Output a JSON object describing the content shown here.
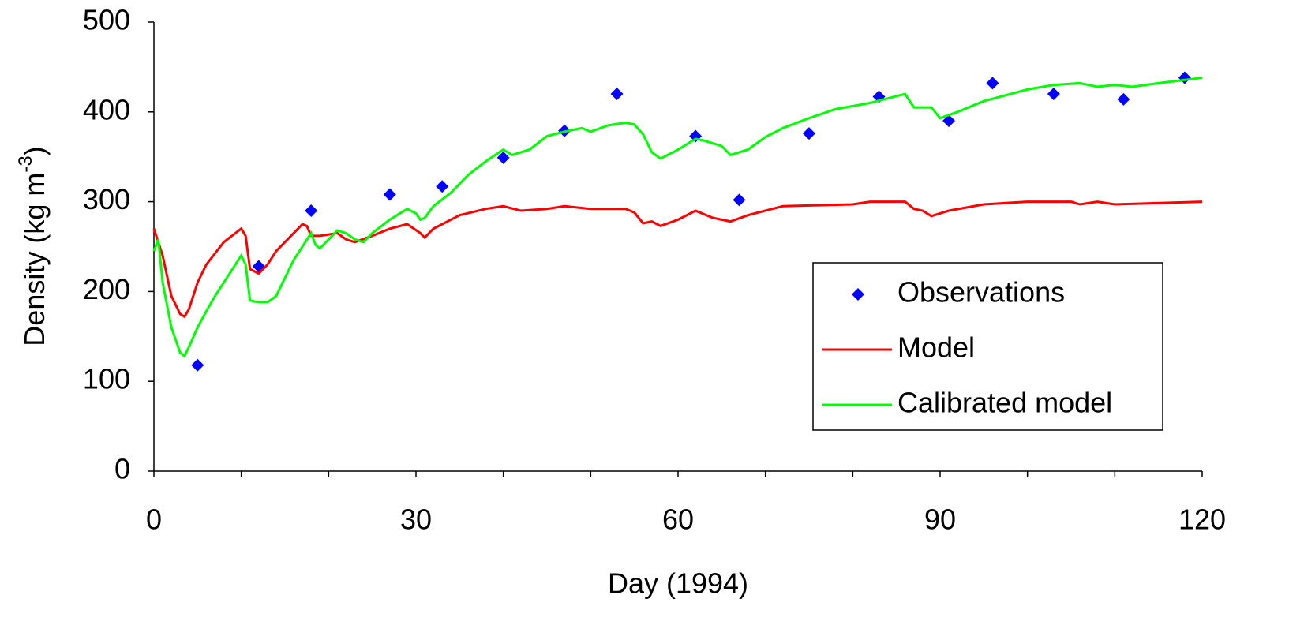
{
  "chart_data": {
    "type": "line",
    "xlabel": "Day (1994)",
    "ylabel": {
      "text": "Density (kg m",
      "superscript": "-3",
      "end": ")"
    },
    "xlim": [
      0,
      120
    ],
    "ylim": [
      0,
      500
    ],
    "xticks": [
      0,
      30,
      60,
      90,
      120
    ],
    "xminor_ticks": [
      10,
      20,
      40,
      50,
      70,
      80,
      100,
      110
    ],
    "yticks": [
      0,
      100,
      200,
      300,
      400,
      500
    ],
    "legend": "lower right",
    "series": [
      {
        "name": "Observations",
        "type": "scatter",
        "color": "#0000ff",
        "x": [
          5,
          12,
          18,
          27,
          33,
          40,
          47,
          53,
          62,
          67,
          75,
          83,
          91,
          96,
          103,
          111,
          118
        ],
        "values": [
          118,
          228,
          290,
          308,
          317,
          349,
          379,
          420,
          373,
          302,
          376,
          417,
          390,
          432,
          420,
          414,
          438
        ]
      },
      {
        "name": "Model",
        "type": "line",
        "color": "#ff0000",
        "x": [
          0,
          1,
          2,
          3,
          3.5,
          4,
          5,
          6,
          8,
          10,
          10.5,
          11,
          12,
          13,
          14,
          15,
          17,
          17.5,
          18,
          19,
          21,
          22,
          23,
          25,
          27,
          29,
          30.5,
          31,
          32,
          35,
          38,
          40,
          42,
          45,
          47,
          50,
          54,
          55,
          56,
          57,
          58,
          60,
          62,
          64,
          66,
          68,
          70,
          72,
          80,
          82,
          86,
          87,
          88,
          89,
          91,
          95,
          100,
          105,
          106,
          108,
          110,
          120
        ],
        "values": [
          270,
          240,
          195,
          175,
          172,
          180,
          210,
          230,
          255,
          270,
          262,
          225,
          220,
          230,
          245,
          255,
          275,
          273,
          262,
          262,
          265,
          258,
          255,
          262,
          270,
          275,
          265,
          260,
          270,
          285,
          292,
          295,
          290,
          292,
          295,
          292,
          292,
          288,
          276,
          278,
          273,
          280,
          290,
          282,
          278,
          285,
          290,
          295,
          297,
          300,
          300,
          292,
          290,
          284,
          290,
          297,
          300,
          300,
          297,
          300,
          297,
          300
        ]
      },
      {
        "name": "Calibrated model",
        "type": "line",
        "color": "#00ff00",
        "x": [
          0,
          0.5,
          1,
          2,
          3,
          3.5,
          4,
          5,
          6,
          7,
          8,
          9,
          10,
          10.5,
          11,
          12,
          13,
          14,
          15,
          16,
          17,
          18,
          18.5,
          19,
          20,
          21,
          22,
          23,
          24,
          25,
          27,
          29,
          30,
          30.5,
          31,
          32,
          34,
          36,
          38,
          40,
          41,
          43,
          45,
          47,
          49,
          50,
          52,
          54,
          55,
          56,
          57,
          58,
          60,
          62,
          63,
          65,
          66,
          68,
          70,
          72,
          75,
          78,
          82,
          86,
          87,
          89,
          90,
          92,
          95,
          100,
          103,
          106,
          108,
          110,
          112,
          115,
          120
        ],
        "values": [
          245,
          258,
          210,
          160,
          132,
          128,
          138,
          160,
          178,
          195,
          210,
          225,
          240,
          230,
          190,
          188,
          188,
          195,
          215,
          235,
          250,
          265,
          252,
          248,
          258,
          268,
          265,
          258,
          255,
          265,
          280,
          292,
          287,
          280,
          282,
          295,
          310,
          330,
          345,
          358,
          352,
          358,
          373,
          378,
          382,
          378,
          385,
          388,
          386,
          375,
          355,
          348,
          358,
          370,
          368,
          362,
          352,
          358,
          372,
          382,
          393,
          403,
          410,
          420,
          405,
          405,
          393,
          400,
          412,
          425,
          430,
          432,
          428,
          430,
          428,
          432,
          438
        ]
      }
    ]
  }
}
